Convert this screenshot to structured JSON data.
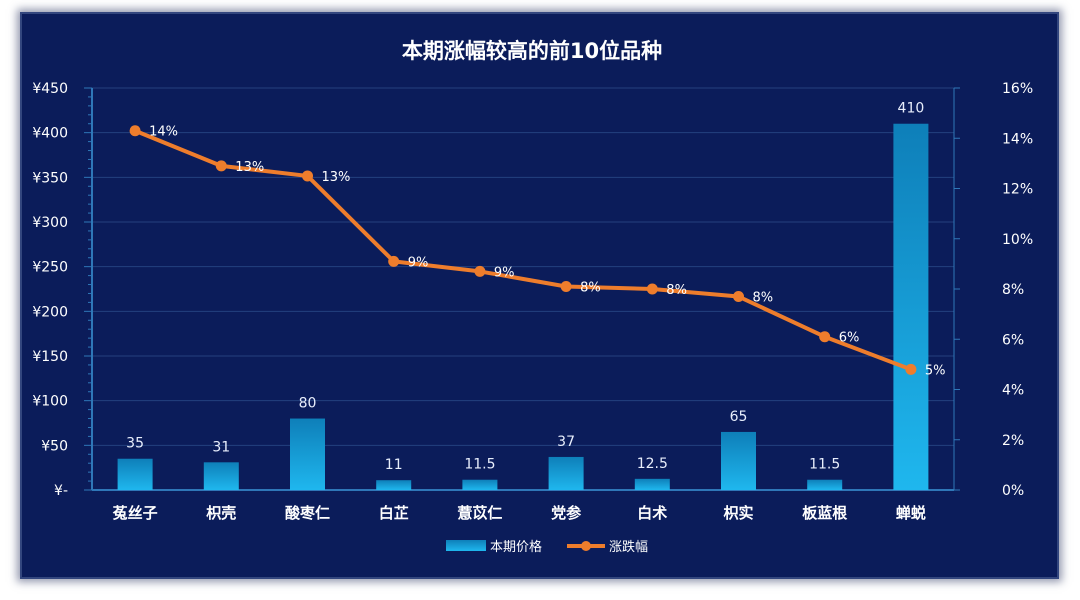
{
  "chart_data": {
    "type": "bar",
    "title": "本期涨幅较高的前10位品种",
    "categories": [
      "菟丝子",
      "枳壳",
      "酸枣仁",
      "白芷",
      "薏苡仁",
      "党参",
      "白术",
      "枳实",
      "板蓝根",
      "蝉蜕"
    ],
    "series": [
      {
        "name": "本期价格",
        "type": "bar",
        "axis": "left",
        "values": [
          35,
          31,
          80,
          11,
          11.5,
          37,
          12.5,
          65,
          11.5,
          410
        ],
        "labels": [
          "35",
          "31",
          "80",
          "11",
          "11.5",
          "37",
          "12.5",
          "65",
          "11.5",
          "410"
        ],
        "color": "#16a4dc"
      },
      {
        "name": "涨跌幅",
        "type": "line",
        "axis": "right",
        "values": [
          0.143,
          0.129,
          0.125,
          0.091,
          0.087,
          0.081,
          0.08,
          0.077,
          0.061,
          0.048
        ],
        "labels": [
          "14%",
          "13%",
          "13%",
          "9%",
          "9%",
          "8%",
          "8%",
          "8%",
          "6%",
          "5%"
        ],
        "color": "#ee7d2c"
      }
    ],
    "y_left": {
      "range": [
        0,
        450
      ],
      "ticks": [
        0,
        50,
        100,
        150,
        200,
        250,
        300,
        350,
        400,
        450
      ],
      "tick_labels": [
        "¥-",
        "¥50",
        "¥100",
        "¥150",
        "¥200",
        "¥250",
        "¥300",
        "¥350",
        "¥400",
        "¥450"
      ]
    },
    "y_right": {
      "range": [
        0,
        0.16
      ],
      "ticks": [
        0,
        0.02,
        0.04,
        0.06,
        0.08,
        0.1,
        0.12,
        0.14,
        0.16
      ],
      "tick_labels": [
        "0%",
        "2%",
        "4%",
        "6%",
        "8%",
        "10%",
        "12%",
        "14%",
        "16%"
      ]
    },
    "grid": true,
    "legend": "bottom",
    "colors": {
      "background": "#0b1c5a",
      "grid": "#24407f",
      "axis": "#2f77b8",
      "bar_top": "#0e7fb9",
      "bar_bottom": "#1fb7ee",
      "line": "#ee7d2c"
    }
  }
}
